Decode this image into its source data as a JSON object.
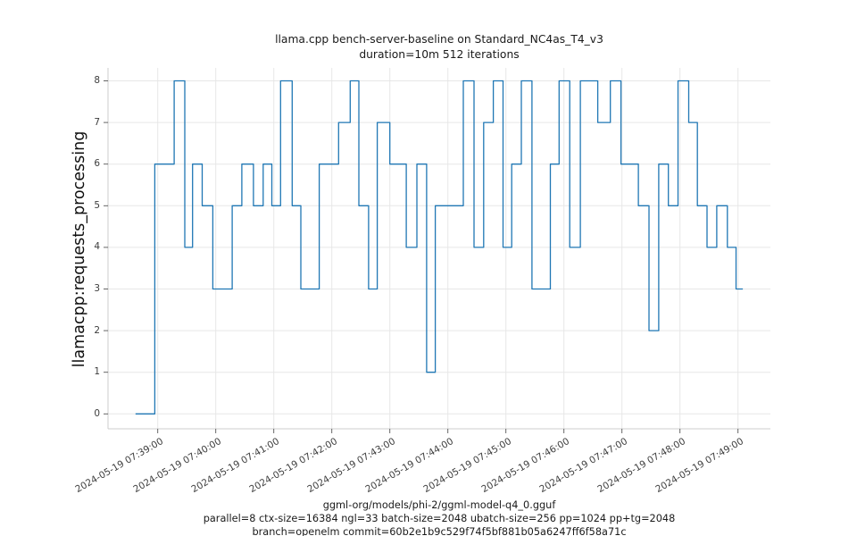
{
  "title": {
    "line1": "llama.cpp bench-server-baseline on Standard_NC4as_T4_v3",
    "line2": "duration=10m 512 iterations"
  },
  "caption": {
    "line1": "ggml-org/models/phi-2/ggml-model-q4_0.gguf",
    "line2": "parallel=8 ctx-size=16384 ngl=33 batch-size=2048 ubatch-size=256 pp=1024 pp+tg=2048",
    "line3": "branch=openelm commit=60b2e1b9c529f74f5bf881b05a6247ff6f58a71c"
  },
  "chart_data": {
    "type": "line",
    "step": true,
    "title": "llama.cpp bench-server-baseline on Standard_NC4as_T4_v3",
    "subtitle": "duration=10m 512 iterations",
    "ylabel": "llamacpp:requests_processing",
    "xlabel": "",
    "ylim": [
      0,
      8
    ],
    "grid": true,
    "legend": "none",
    "line_color": "#1f77b4",
    "grid_color": "#e7e7e7",
    "spine_color": "#cccccc",
    "tick_color": "#555555",
    "y_ticks": [
      0,
      1,
      2,
      3,
      4,
      5,
      6,
      7,
      8
    ],
    "x_tick_seconds": [
      0,
      60,
      120,
      180,
      240,
      300,
      360,
      420,
      480,
      540,
      600
    ],
    "x_tick_labels": [
      "2024-05-19 07:39:00",
      "2024-05-19 07:40:00",
      "2024-05-19 07:41:00",
      "2024-05-19 07:42:00",
      "2024-05-19 07:43:00",
      "2024-05-19 07:44:00",
      "2024-05-19 07:45:00",
      "2024-05-19 07:46:00",
      "2024-05-19 07:47:00",
      "2024-05-19 07:48:00",
      "2024-05-19 07:49:00"
    ],
    "series": [
      {
        "name": "llamacpp:requests_processing",
        "time_origin_label": "2024-05-19 07:39:00",
        "x_unit": "seconds relative to time origin",
        "step_points_sec_value": [
          [
            -23,
            0
          ],
          [
            -3,
            6
          ],
          [
            17,
            8
          ],
          [
            28,
            4
          ],
          [
            36,
            6
          ],
          [
            46,
            5
          ],
          [
            57,
            3
          ],
          [
            77,
            5
          ],
          [
            87,
            6
          ],
          [
            99,
            5
          ],
          [
            109,
            6
          ],
          [
            118,
            5
          ],
          [
            127,
            8
          ],
          [
            139,
            5
          ],
          [
            148,
            3
          ],
          [
            167,
            6
          ],
          [
            187,
            7
          ],
          [
            199,
            8
          ],
          [
            208,
            5
          ],
          [
            218,
            3
          ],
          [
            227,
            7
          ],
          [
            240,
            6
          ],
          [
            257,
            4
          ],
          [
            268,
            6
          ],
          [
            278,
            1
          ],
          [
            287,
            5
          ],
          [
            316,
            8
          ],
          [
            327,
            4
          ],
          [
            337,
            7
          ],
          [
            347,
            8
          ],
          [
            357,
            4
          ],
          [
            366,
            6
          ],
          [
            376,
            8
          ],
          [
            387,
            3
          ],
          [
            406,
            6
          ],
          [
            415,
            8
          ],
          [
            426,
            4
          ],
          [
            437,
            8
          ],
          [
            455,
            7
          ],
          [
            468,
            8
          ],
          [
            479,
            6
          ],
          [
            497,
            5
          ],
          [
            508,
            2
          ],
          [
            518,
            6
          ],
          [
            528,
            5
          ],
          [
            538,
            8
          ],
          [
            549,
            7
          ],
          [
            558,
            5
          ],
          [
            568,
            4
          ],
          [
            578,
            5
          ],
          [
            589,
            4
          ],
          [
            598,
            3
          ]
        ],
        "end_sec": 605
      }
    ]
  }
}
